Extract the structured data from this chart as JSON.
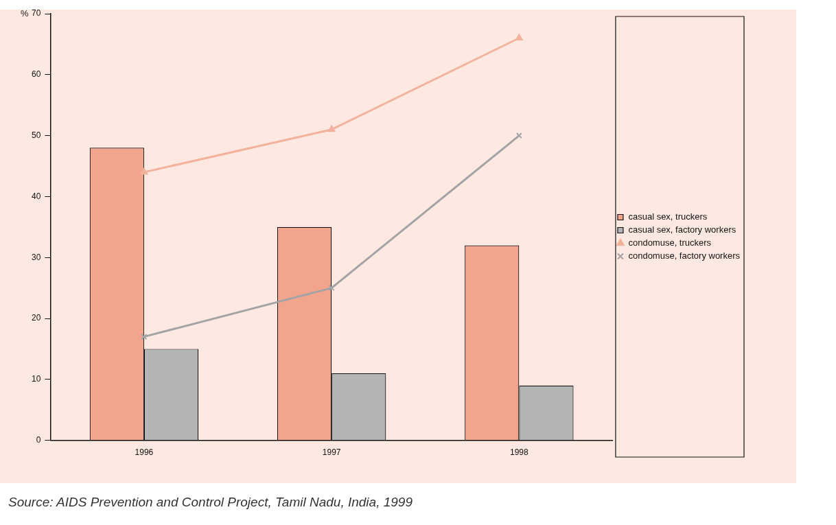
{
  "chart_data": {
    "type": "bar",
    "ylabel": "%",
    "categories": [
      "1996",
      "1997",
      "1998"
    ],
    "series": [
      {
        "name": "casual sex, truckers",
        "color": "#f2a58c",
        "values": [
          48,
          35,
          32
        ]
      },
      {
        "name": "casual sex, factory workers",
        "color": "#b4b4b6",
        "values": [
          15,
          11,
          9
        ]
      },
      {
        "name": "condomuse, truckers",
        "type": "line",
        "color": "#f3b29c",
        "marker": "triangle",
        "values": [
          44,
          51,
          66
        ]
      },
      {
        "name": "condomuse, factory workers",
        "type": "line",
        "color": "#a3a3a5",
        "marker": "cross",
        "values": [
          17,
          25,
          50
        ]
      }
    ],
    "ylim": [
      0,
      70
    ],
    "yticks": [
      0,
      10,
      20,
      30,
      40,
      50,
      60,
      70
    ],
    "grid": false,
    "legend": "right",
    "annotations": [
      "Source: AIDS Prevention and Control Project, Tamil Nadu, India, 1999"
    ]
  }
}
